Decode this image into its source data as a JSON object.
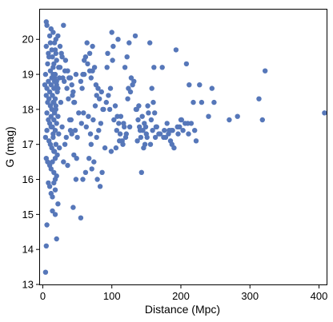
{
  "chart_data": {
    "type": "scatter",
    "title": "",
    "xlabel": "Distance (Mpc)",
    "ylabel": "G (mag)",
    "xlim": [
      -4,
      411
    ],
    "ylim": [
      13.0,
      20.85
    ],
    "xticks": [
      0,
      100,
      200,
      300,
      400
    ],
    "yticks": [
      13,
      14,
      15,
      16,
      17,
      18,
      19,
      20
    ],
    "grid": false,
    "legend": "none",
    "marker_color": "#5677b9",
    "series": [
      {
        "x": [
          5,
          6,
          5,
          8,
          10,
          12,
          15,
          17,
          19,
          22,
          25,
          27,
          30,
          14,
          16,
          18,
          20,
          23,
          28,
          32,
          7,
          9,
          11,
          13,
          15,
          17,
          20,
          24,
          4,
          6,
          8,
          10,
          12,
          14,
          16,
          18,
          21,
          26,
          3,
          5,
          7,
          9,
          11,
          13,
          15,
          17,
          19,
          22,
          6,
          8,
          10,
          12,
          14,
          16,
          18,
          20,
          23,
          4,
          6,
          9,
          11,
          13,
          15,
          17,
          19,
          21,
          24,
          5,
          7,
          10,
          12,
          14,
          16,
          18,
          20,
          8,
          10,
          12,
          14,
          16,
          18,
          11,
          13,
          15,
          17,
          19,
          14,
          16,
          18,
          20,
          22,
          12,
          15,
          17,
          19,
          16,
          18,
          6,
          20,
          4,
          5,
          22,
          14,
          18,
          25,
          29,
          31,
          35,
          37,
          38,
          42,
          44,
          46,
          48,
          33,
          36,
          40,
          43,
          47,
          50,
          52,
          41,
          45,
          49,
          32,
          28,
          34,
          39,
          30,
          36,
          44,
          48,
          40,
          42,
          45,
          55,
          58,
          60,
          62,
          65,
          68,
          70,
          72,
          75,
          77,
          78,
          80,
          82,
          85,
          88,
          56,
          59,
          63,
          66,
          69,
          73,
          76,
          81,
          84,
          87,
          58,
          62,
          67,
          71,
          74,
          79,
          83,
          86,
          64,
          68,
          72,
          60,
          57,
          55,
          70,
          78,
          90,
          93,
          95,
          98,
          100,
          102,
          105,
          108,
          110,
          112,
          115,
          118,
          120,
          122,
          125,
          128,
          130,
          92,
          97,
          103,
          107,
          113,
          117,
          123,
          127,
          99,
          106,
          111,
          116,
          121,
          126,
          94,
          101,
          109,
          119,
          124,
          132,
          135,
          138,
          140,
          142,
          145,
          148,
          150,
          152,
          155,
          158,
          160,
          162,
          165,
          168,
          134,
          139,
          143,
          147,
          153,
          157,
          161,
          164,
          137,
          141,
          146,
          151,
          156,
          136,
          144,
          149,
          159,
          163,
          170,
          173,
          176,
          178,
          180,
          182,
          185,
          188,
          190,
          193,
          196,
          198,
          200,
          203,
          206,
          208,
          210,
          175,
          183,
          187,
          195,
          201,
          212,
          215,
          218,
          220,
          222,
          227,
          240,
          245,
          248,
          270,
          282,
          313,
          318,
          322,
          408,
          230,
          211,
          186
        ],
        "y": [
          20.5,
          20.4,
          19.8,
          19.6,
          20.1,
          20.3,
          20.2,
          19.9,
          20.0,
          20.1,
          19.8,
          19.6,
          20.4,
          19.5,
          19.3,
          19.7,
          19.4,
          19.2,
          19.5,
          19.1,
          19.3,
          19.5,
          19.1,
          18.9,
          19.0,
          18.8,
          18.7,
          18.9,
          19.0,
          18.6,
          18.8,
          18.5,
          18.7,
          18.4,
          18.6,
          18.3,
          18.5,
          18.2,
          18.7,
          18.4,
          18.2,
          18.3,
          18.1,
          18.0,
          18.2,
          17.9,
          18.1,
          17.8,
          17.9,
          17.7,
          17.6,
          17.8,
          17.5,
          17.7,
          17.4,
          17.6,
          17.3,
          17.2,
          17.4,
          17.1,
          17.0,
          16.9,
          17.2,
          16.8,
          17.0,
          16.7,
          16.9,
          16.6,
          16.5,
          16.4,
          16.3,
          16.5,
          16.2,
          16.0,
          16.1,
          15.9,
          15.8,
          15.6,
          15.5,
          15.9,
          15.7,
          19.9,
          19.7,
          19.2,
          18.9,
          19.6,
          18.4,
          18.2,
          19.0,
          18.8,
          18.6,
          17.5,
          17.3,
          17.9,
          18.0,
          16.8,
          16.6,
          14.7,
          14.3,
          13.35,
          14.1,
          15.3,
          15.1,
          15.0,
          19.2,
          18.9,
          18.8,
          18.6,
          18.3,
          18.9,
          18.7,
          18.5,
          18.2,
          19.0,
          19.4,
          19.1,
          18.9,
          18.4,
          17.4,
          17.2,
          17.9,
          17.7,
          16.7,
          16.6,
          17.0,
          17.5,
          17.2,
          17.7,
          16.5,
          16.4,
          15.2,
          16.0,
          17.4,
          17.3,
          18.2,
          18.8,
          19.0,
          19.4,
          19.5,
          19.3,
          19.1,
          18.9,
          19.1,
          19.2,
          18.7,
          18.4,
          18.6,
          18.3,
          18.5,
          18.0,
          17.6,
          17.9,
          17.5,
          17.8,
          17.3,
          17.7,
          18.1,
          17.4,
          17.6,
          18.0,
          16.0,
          16.2,
          16.6,
          16.3,
          16.5,
          16.0,
          15.8,
          16.2,
          19.9,
          19.6,
          19.8,
          19.0,
          18.6,
          14.9,
          17.0,
          17.2,
          16.9,
          19.2,
          18.4,
          18.6,
          20.2,
          19.8,
          18.1,
          17.8,
          17.6,
          17.3,
          17.1,
          17.5,
          17.2,
          19.5,
          19.9,
          18.9,
          18.7,
          18.2,
          18.0,
          17.7,
          17.4,
          17.8,
          17.6,
          18.3,
          18.5,
          16.8,
          16.9,
          17.1,
          17.0,
          17.3,
          17.5,
          19.6,
          19.4,
          20.0,
          19.2,
          18.6,
          18.8,
          18.0,
          17.7,
          17.5,
          17.2,
          17.4,
          17.0,
          17.3,
          18.1,
          19.9,
          18.6,
          18.2,
          17.9,
          17.5,
          17.3,
          20.1,
          18.1,
          16.2,
          17.6,
          17.9,
          17.7,
          19.2,
          17.5,
          17.1,
          17.4,
          16.9,
          17.2,
          17.0,
          18.0,
          17.8,
          17.5,
          17.4,
          17.2,
          17.3,
          19.2,
          17.4,
          17.2,
          17.6,
          17.3,
          17.1,
          17.4,
          16.9,
          19.7,
          17.3,
          17.5,
          17.7,
          17.4,
          17.6,
          19.3,
          17.6,
          17.2,
          17.4,
          17.0,
          17.5,
          17.7,
          18.7,
          17.6,
          18.2,
          17.4,
          17.1,
          18.7,
          17.8,
          18.6,
          18.2,
          17.7,
          17.8,
          18.3,
          17.7,
          19.1,
          17.9,
          18.2,
          17.3,
          17.4
        ]
      }
    ]
  }
}
